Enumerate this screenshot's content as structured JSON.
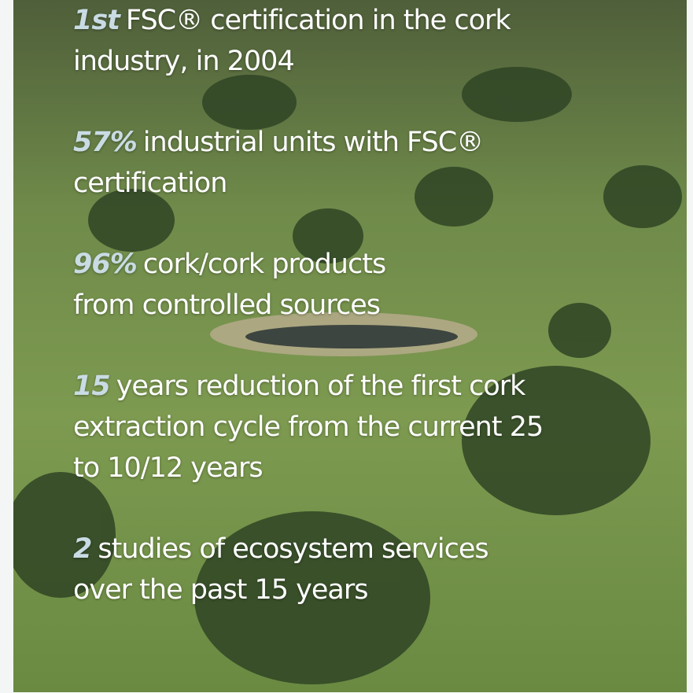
{
  "stats": [
    {
      "highlight": "1st",
      "lines": [
        "FSC® certification in the cork",
        "industry, in 2004"
      ]
    },
    {
      "highlight": "57%",
      "lines": [
        "industrial units with FSC®",
        "certification"
      ]
    },
    {
      "highlight": "96%",
      "lines": [
        "cork/cork products",
        "from controlled sources"
      ]
    },
    {
      "highlight": "15",
      "lines": [
        "years reduction of the first cork",
        "extraction cycle from the current 25",
        "to 10/12 years"
      ]
    },
    {
      "highlight": "2",
      "lines": [
        "studies of ecosystem services",
        "over the past 15 years"
      ]
    }
  ]
}
